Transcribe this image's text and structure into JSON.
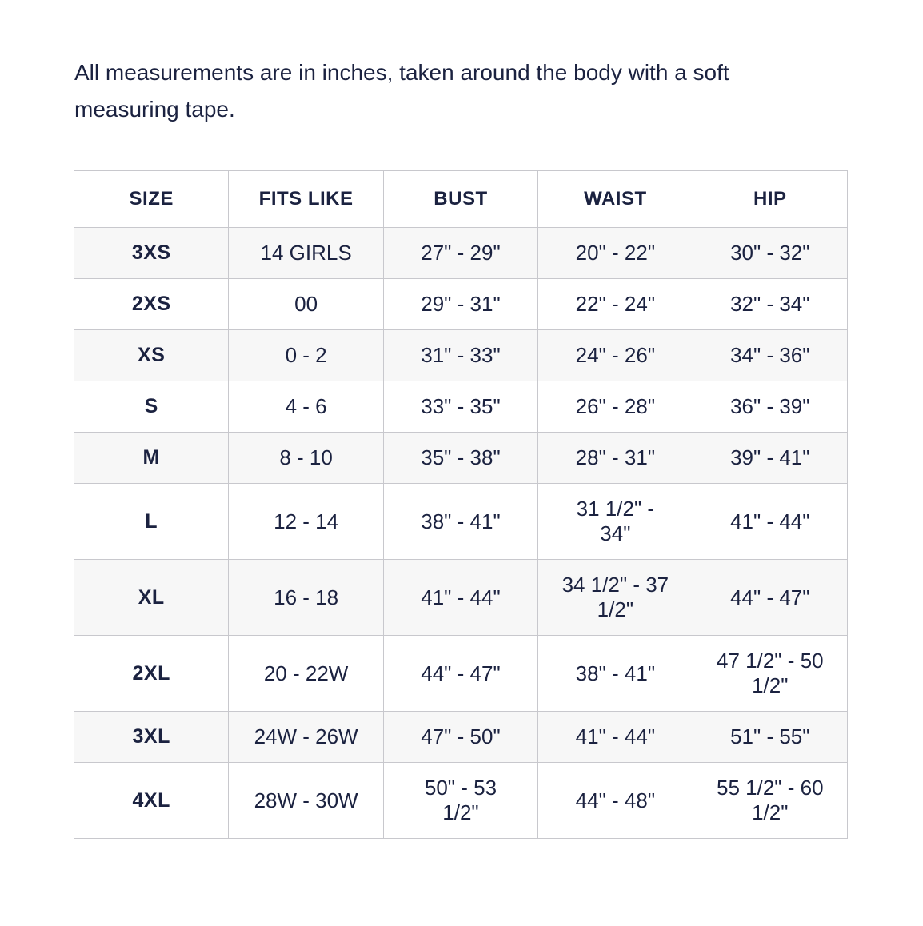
{
  "intro": {
    "text": "All measurements are in inches, taken around the body with a soft measuring tape."
  },
  "colors": {
    "text_navy": "#1b2240",
    "row_alt_bg": "#f7f7f7",
    "border": "#c8c8cd"
  },
  "table": {
    "columns": [
      "SIZE",
      "FITS LIKE",
      "BUST",
      "WAIST",
      "HIP"
    ],
    "rows": [
      [
        "3XS",
        "14 GIRLS",
        "27\" - 29\"",
        "20\" - 22\"",
        "30\" - 32\""
      ],
      [
        "2XS",
        "00",
        "29\" - 31\"",
        "22\" - 24\"",
        "32\" - 34\""
      ],
      [
        "XS",
        "0 - 2",
        "31\" - 33\"",
        "24\" - 26\"",
        "34\" - 36\""
      ],
      [
        "S",
        "4 - 6",
        "33\" - 35\"",
        "26\" - 28\"",
        "36\" - 39\""
      ],
      [
        "M",
        "8 - 10",
        "35\" - 38\"",
        "28\" - 31\"",
        "39\" - 41\""
      ],
      [
        "L",
        "12 - 14",
        "38\" - 41\"",
        "31 1/2\" - 34\"",
        "41\" - 44\""
      ],
      [
        "XL",
        "16 - 18",
        "41\" - 44\"",
        "34 1/2\" - 37 1/2\"",
        "44\" - 47\""
      ],
      [
        "2XL",
        "20 - 22W",
        "44\" - 47\"",
        "38\" - 41\"",
        "47 1/2\" - 50 1/2\""
      ],
      [
        "3XL",
        "24W - 26W",
        "47\" - 50\"",
        "41\" - 44\"",
        "51\" - 55\""
      ],
      [
        "4XL",
        "28W - 30W",
        "50\" - 53 1/2\"",
        "44\" - 48\"",
        "55 1/2\" - 60 1/2\""
      ]
    ]
  }
}
